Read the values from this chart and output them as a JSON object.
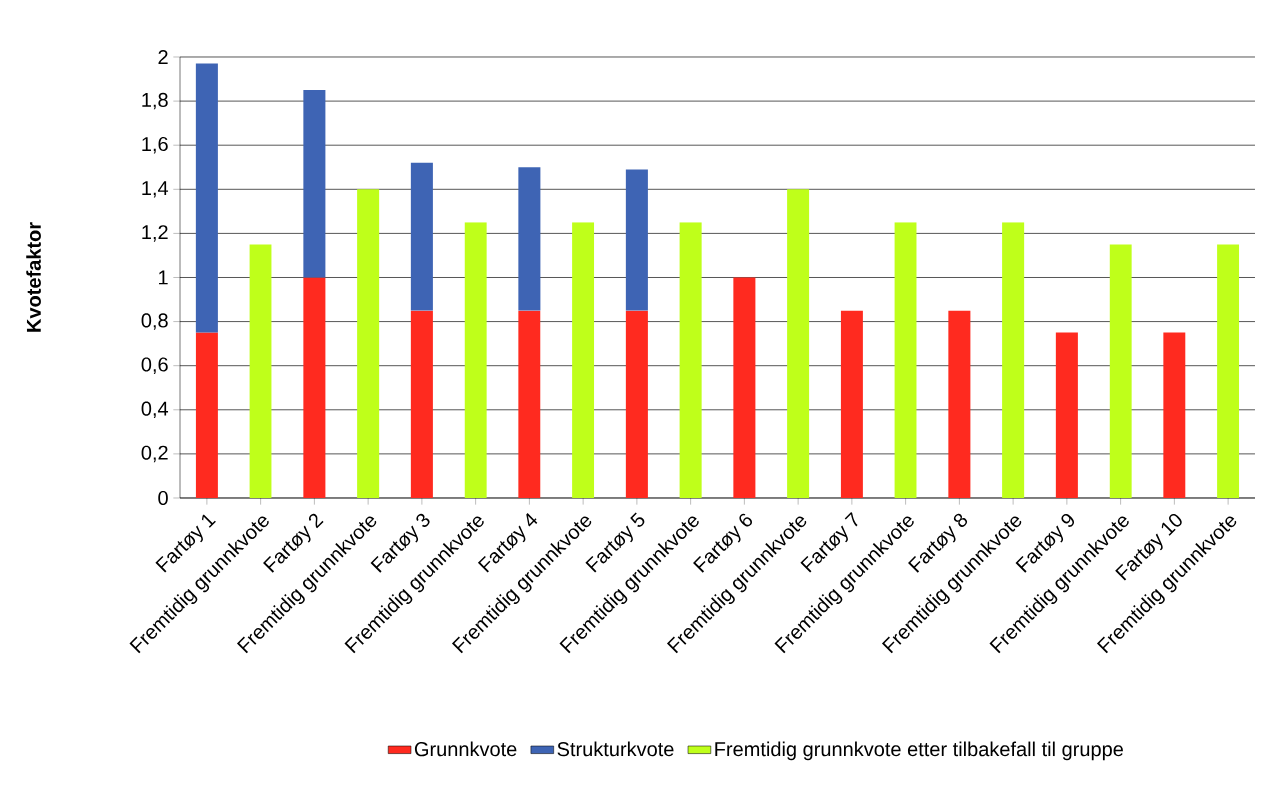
{
  "chart_data": {
    "type": "bar",
    "stacked": true,
    "ylabel": "Kvotefaktor",
    "categories": [
      "Fartøy 1",
      "Fremtidig grunnkvote",
      "Fartøy 2",
      "Fremtidig grunnkvote",
      "Fartøy 3",
      "Fremtidig grunnkvote",
      "Fartøy 4",
      "Fremtidig grunnkvote",
      "Fartøy 5",
      "Fremtidig grunnkvote",
      "Fartøy 6",
      "Fremtidig grunnkvote",
      "Fartøy 7",
      "Fremtidig grunnkvote",
      "Fartøy 8",
      "Fremtidig grunnkvote",
      "Fartøy 9",
      "Fremtidig grunnkvote",
      "Fartøy 10",
      "Fremtidig grunnkvote"
    ],
    "series": [
      {
        "name": "Grunnkvote",
        "color": "#ff2a1f",
        "values": [
          0.75,
          null,
          1.0,
          null,
          0.85,
          null,
          0.85,
          null,
          0.85,
          null,
          1.0,
          null,
          0.85,
          null,
          0.85,
          null,
          0.75,
          null,
          0.75,
          null
        ]
      },
      {
        "name": "Strukturkvote",
        "color": "#3e64b4",
        "values": [
          1.22,
          null,
          0.85,
          null,
          0.67,
          null,
          0.65,
          null,
          0.64,
          null,
          null,
          null,
          null,
          null,
          null,
          null,
          null,
          null,
          null,
          null
        ]
      },
      {
        "name": "Fremtidig grunnkvote etter tilbakefall til gruppe",
        "color": "#bfff1a",
        "values": [
          null,
          1.15,
          null,
          1.4,
          null,
          1.25,
          null,
          1.25,
          null,
          1.25,
          null,
          1.4,
          null,
          1.25,
          null,
          1.25,
          null,
          1.15,
          null,
          1.15
        ]
      }
    ],
    "ylim": [
      0,
      2
    ],
    "yticks": [
      0,
      {
        "value": 0.2,
        "label": "0,2"
      },
      {
        "value": 0.4,
        "label": "0,4"
      },
      {
        "value": 0.6,
        "label": "0,6"
      },
      {
        "value": 0.8,
        "label": "0,8"
      },
      1,
      {
        "value": 1.2,
        "label": "1,2"
      },
      {
        "value": 1.4,
        "label": "1,4"
      },
      {
        "value": 1.6,
        "label": "1,6"
      },
      {
        "value": 1.8,
        "label": "1,8"
      },
      2
    ],
    "grid": "y",
    "legend": "bottom"
  }
}
